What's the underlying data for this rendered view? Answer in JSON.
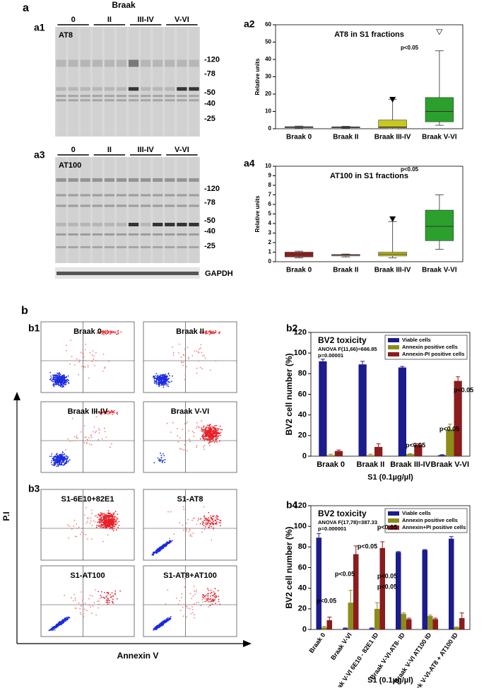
{
  "figure": {
    "panel_a": "a",
    "panel_b": "b",
    "a1": {
      "label": "a1",
      "header": "Braak",
      "stages": [
        "0",
        "II",
        "III-IV",
        "V-VI"
      ],
      "antibody": "AT8",
      "markers": [
        "-120",
        "-78",
        "-50",
        "-40",
        "-25"
      ]
    },
    "a3": {
      "label": "a3",
      "stages": [
        "0",
        "II",
        "III-IV",
        "V-VI"
      ],
      "antibody": "AT100",
      "markers": [
        "-120",
        "-78",
        "-50",
        "-40",
        "-25"
      ],
      "loading": "GAPDH"
    },
    "a2": {
      "label": "a2"
    },
    "a4": {
      "label": "a4"
    },
    "b2": {
      "label": "b2"
    },
    "b4": {
      "label": "b4"
    },
    "b1": {
      "label": "b1",
      "plots": [
        "Braak 0",
        "Braak II",
        "Braak III-IV",
        "Braak V-VI"
      ]
    },
    "b3": {
      "label": "b3",
      "plots": [
        "S1-6E10+82E1",
        "S1-AT8",
        "S1-AT100",
        "S1-AT8+AT100"
      ]
    },
    "y_label": "P.I",
    "x_label": "Annexin V"
  },
  "chart_data": [
    {
      "type": "box",
      "title": "AT8 in S1 fractions",
      "ylabel": "Relative units",
      "categories": [
        "Braak 0",
        "Braak II",
        "Braak III-IV",
        "Braak V-VI"
      ],
      "min": [
        0.3,
        0.4,
        0,
        2
      ],
      "q1": [
        0.6,
        0.6,
        0.5,
        4
      ],
      "median": [
        0.9,
        0.8,
        1,
        10
      ],
      "q3": [
        1.2,
        1.1,
        5,
        18
      ],
      "max": [
        1.5,
        1.4,
        17,
        45
      ],
      "outliers": [
        [],
        [],
        [
          17
        ],
        [
          56
        ]
      ],
      "colors": [
        "#a0a0a0",
        "#d98c8c",
        "#c8c81e",
        "#2ca02c"
      ],
      "ylim": [
        0,
        60
      ],
      "yticks": [
        0,
        10,
        20,
        30,
        40,
        50,
        60
      ],
      "annotations": [
        "p<0.05"
      ]
    },
    {
      "type": "box",
      "title": "AT100 in S1 fractions",
      "ylabel": "Relative units",
      "categories": [
        "Braak 0",
        "Braak II",
        "Braak III-IV",
        "Braak V-VI"
      ],
      "min": [
        0.4,
        0.5,
        0.4,
        1.3
      ],
      "q1": [
        0.5,
        0.6,
        0.6,
        2.2
      ],
      "median": [
        0.8,
        0.7,
        0.8,
        3.7
      ],
      "q3": [
        1.0,
        0.75,
        1.0,
        5.4
      ],
      "max": [
        1.1,
        0.8,
        4.2,
        7
      ],
      "outliers": [
        [],
        [],
        [
          4.5
        ],
        []
      ],
      "colors": [
        "#9b1c1c",
        "#f0a080",
        "#c8c81e",
        "#2ca02c"
      ],
      "ylim": [
        0,
        10
      ],
      "yticks": [
        0,
        1,
        2,
        3,
        4,
        5,
        6,
        7,
        8,
        9,
        10
      ],
      "annotations": [
        "p<0.05"
      ]
    },
    {
      "type": "bar",
      "title": "BV2 toxicity",
      "subtitle": [
        "ANOVA F(11,66)=666.85",
        "p=0.00001"
      ],
      "ylabel": "BV2 cell number (%)",
      "xlabel": "S1 (0.1µg/µl)",
      "categories": [
        "Braak 0",
        "Braak II",
        "Braak III-IV",
        "Braak V-VI"
      ],
      "series": [
        {
          "name": "Viable cells",
          "color": "#1c1c8c",
          "values": [
            92,
            89,
            86,
            1
          ],
          "errors": [
            2,
            3,
            1,
            0.5
          ]
        },
        {
          "name": "Annexin positive cells",
          "color": "#8c8c1c",
          "values": [
            1,
            1,
            2,
            26
          ],
          "errors": [
            1,
            1,
            0.5,
            5
          ]
        },
        {
          "name": "Annexin-PI positive cells",
          "color": "#8b1c1c",
          "values": [
            5,
            9,
            11,
            73
          ],
          "errors": [
            1,
            3,
            1,
            4
          ]
        }
      ],
      "ylim": [
        0,
        120
      ],
      "yticks": [
        0,
        20,
        40,
        60,
        80,
        100,
        120
      ],
      "annotations": [
        "p<0.05",
        "p<0.05",
        "p<0.05"
      ]
    },
    {
      "type": "bar",
      "title": "BV2 toxicity",
      "subtitle": [
        "ANOVA F(17,78)=387.33",
        "p=0.000001"
      ],
      "ylabel": "BV2 cell number (%)",
      "xlabel": "S1 (0.1µg/µl)",
      "categories": [
        "Braak 0",
        "Braak V-VI",
        "Braak V-VI 6E10 - 82E1 ID",
        "Braak V-VI-AT8- ID",
        "Braak V-VI AT100 ID",
        "Braak V-VI-AT8 + AT100 ID"
      ],
      "series": [
        {
          "name": "Viable cells",
          "color": "#1c1c8c",
          "values": [
            89,
            1,
            1,
            75,
            77,
            88
          ],
          "errors": [
            4,
            0.5,
            0.5,
            0.5,
            0.5,
            2
          ]
        },
        {
          "name": "Annexin positive cells",
          "color": "#8c8c1c",
          "values": [
            2,
            26,
            20,
            15,
            13,
            2
          ],
          "errors": [
            1,
            12,
            6,
            1,
            1,
            0.5
          ]
        },
        {
          "name": "Annexin+PI positive cells",
          "color": "#8b1c1c",
          "values": [
            9,
            73,
            79,
            10,
            10,
            11
          ],
          "errors": [
            3,
            8,
            6,
            1,
            1,
            5
          ]
        }
      ],
      "ylim": [
        0,
        120
      ],
      "yticks": [
        0,
        20,
        40,
        60,
        80,
        100,
        120
      ],
      "annotations": [
        "p<0.05",
        "p<0.05",
        "p<0.05",
        "p<0.05",
        "p<0.05",
        "p<0.05"
      ]
    }
  ]
}
